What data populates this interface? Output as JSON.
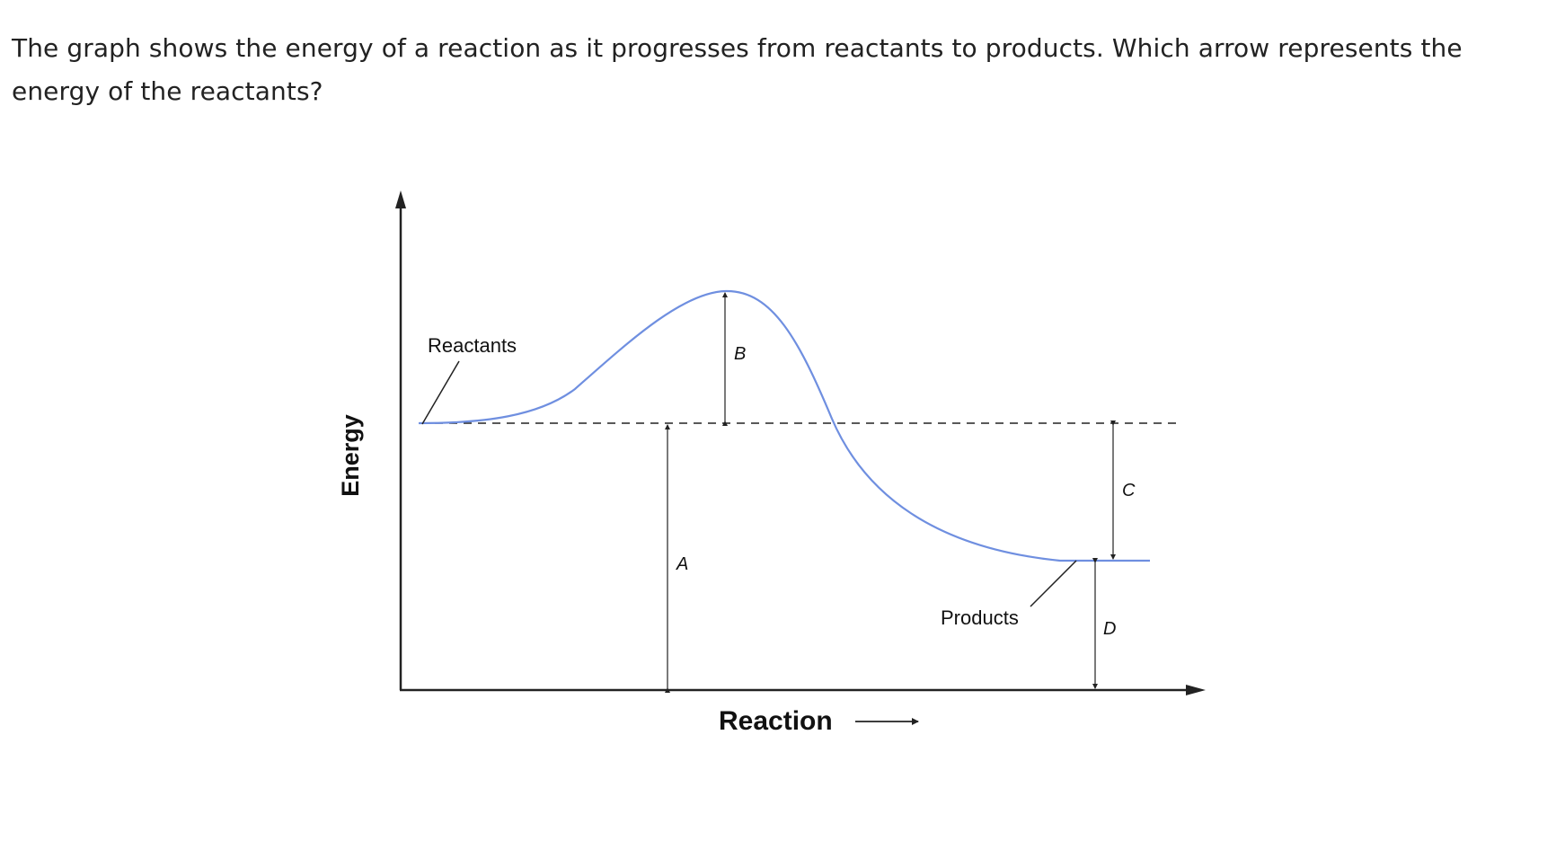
{
  "question": {
    "text": "The graph shows the energy of a reaction as it progresses from reactants to products. Which arrow represents the energy of the reactants?"
  },
  "diagram": {
    "y_axis_label": "Energy",
    "x_axis_label": "Reaction",
    "reactants_label": "Reactants",
    "products_label": "Products",
    "arrows": {
      "a": "A",
      "b": "B",
      "c": "C",
      "d": "D"
    },
    "colors": {
      "curve": "#6f8fe0",
      "axes": "#222222"
    }
  }
}
